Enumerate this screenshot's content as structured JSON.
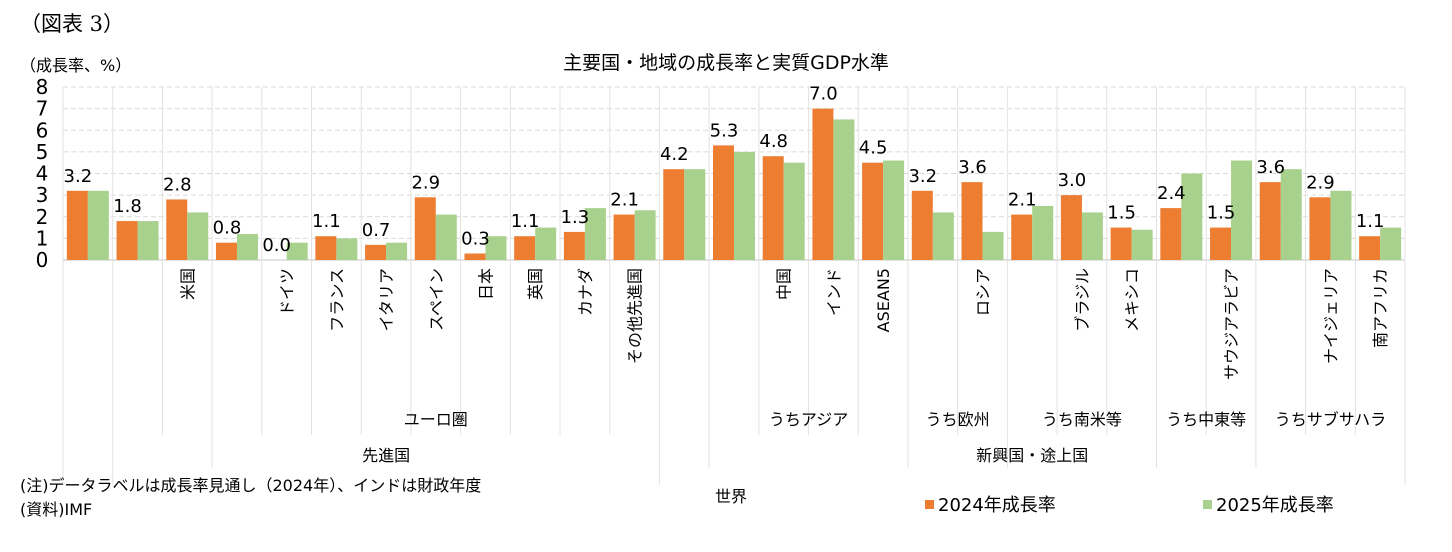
{
  "figure_label": "（図表 3）",
  "chart_data": {
    "type": "bar",
    "title": "主要国・地域の成長率と実質GDP水準",
    "ylabel": "（成長率、%）",
    "xlabel": "",
    "ylim": [
      0,
      8
    ],
    "yticks": [
      0,
      1,
      2,
      3,
      4,
      5,
      6,
      7,
      8
    ],
    "grid": true,
    "legend_position": "bottom",
    "categories": [
      "世界",
      "先進国",
      "米国",
      "ユーロ圏",
      "ドイツ",
      "フランス",
      "イタリア",
      "スペイン",
      "日本",
      "英国",
      "カナダ",
      "その他先進国",
      "新興国・途上国",
      "うちアジア",
      "中国",
      "インド",
      "ASEAN5",
      "うち欧州",
      "ロシア",
      "うち南米等",
      "ブラジル",
      "メキシコ",
      "うち中東等",
      "サウジアラビア",
      "うちサブサハラ",
      "ナイジェリア",
      "南アフリカ"
    ],
    "tick_labels": [
      "",
      "",
      "米国",
      "",
      "ドイツ",
      "フランス",
      "イタリア",
      "スペイン",
      "日本",
      "英国",
      "カナダ",
      "その他先進国",
      "",
      "",
      "中国",
      "インド",
      "ASEAN5",
      "",
      "ロシア",
      "",
      "ブラジル",
      "メキシコ",
      "",
      "サウジアラビア",
      "",
      "ナイジェリア",
      "南アフリカ"
    ],
    "series": [
      {
        "name": "2024年成長率",
        "color": "#ED7D31",
        "values": [
          3.2,
          1.8,
          2.8,
          0.8,
          0.0,
          1.1,
          0.7,
          2.9,
          0.3,
          1.1,
          1.3,
          2.1,
          4.2,
          5.3,
          4.8,
          7.0,
          4.5,
          3.2,
          3.6,
          2.1,
          3.0,
          1.5,
          2.4,
          1.5,
          3.6,
          2.9,
          1.1
        ]
      },
      {
        "name": "2025年成長率",
        "color": "#A9D18E",
        "values": [
          3.2,
          1.8,
          2.2,
          1.2,
          0.8,
          1.0,
          0.8,
          2.1,
          1.1,
          1.5,
          2.4,
          2.3,
          4.2,
          5.0,
          4.5,
          6.5,
          4.6,
          2.2,
          1.3,
          2.5,
          2.2,
          1.4,
          4.0,
          4.6,
          4.2,
          3.2,
          1.5
        ]
      }
    ],
    "data_labels": [
      "3.2",
      "1.8",
      "2.8",
      "0.8",
      "0.0",
      "1.1",
      "0.7",
      "2.9",
      "0.3",
      "1.1",
      "1.3",
      "2.1",
      "4.2",
      "5.3",
      "4.8",
      "7.0",
      "4.5",
      "3.2",
      "3.6",
      "2.1",
      "3.0",
      "1.5",
      "2.4",
      "1.5",
      "3.6",
      "2.9",
      "1.1"
    ],
    "level2_groups": [
      {
        "label": "ユーロ圏",
        "start": 3,
        "end": 11
      },
      {
        "label": "うちアジア",
        "start": 13,
        "end": 16
      },
      {
        "label": "うち欧州",
        "start": 17,
        "end": 18
      },
      {
        "label": "うち南米等",
        "start": 19,
        "end": 21
      },
      {
        "label": "うち中東等",
        "start": 22,
        "end": 23
      },
      {
        "label": "うちサブサハラ",
        "start": 24,
        "end": 26
      }
    ],
    "level3_groups": [
      {
        "label": "先進国",
        "start": 1,
        "end": 11
      },
      {
        "label": "新興国・途上国",
        "start": 12,
        "end": 26
      }
    ],
    "level4_label": "世界"
  },
  "notes": {
    "note": "(注)データラベルは成長率見通し（2024年）、インドは財政年度",
    "source": "(資料)IMF"
  },
  "legend": [
    {
      "label": "2024年成長率",
      "color": "#ED7D31"
    },
    {
      "label": "2025年成長率",
      "color": "#A9D18E"
    }
  ]
}
